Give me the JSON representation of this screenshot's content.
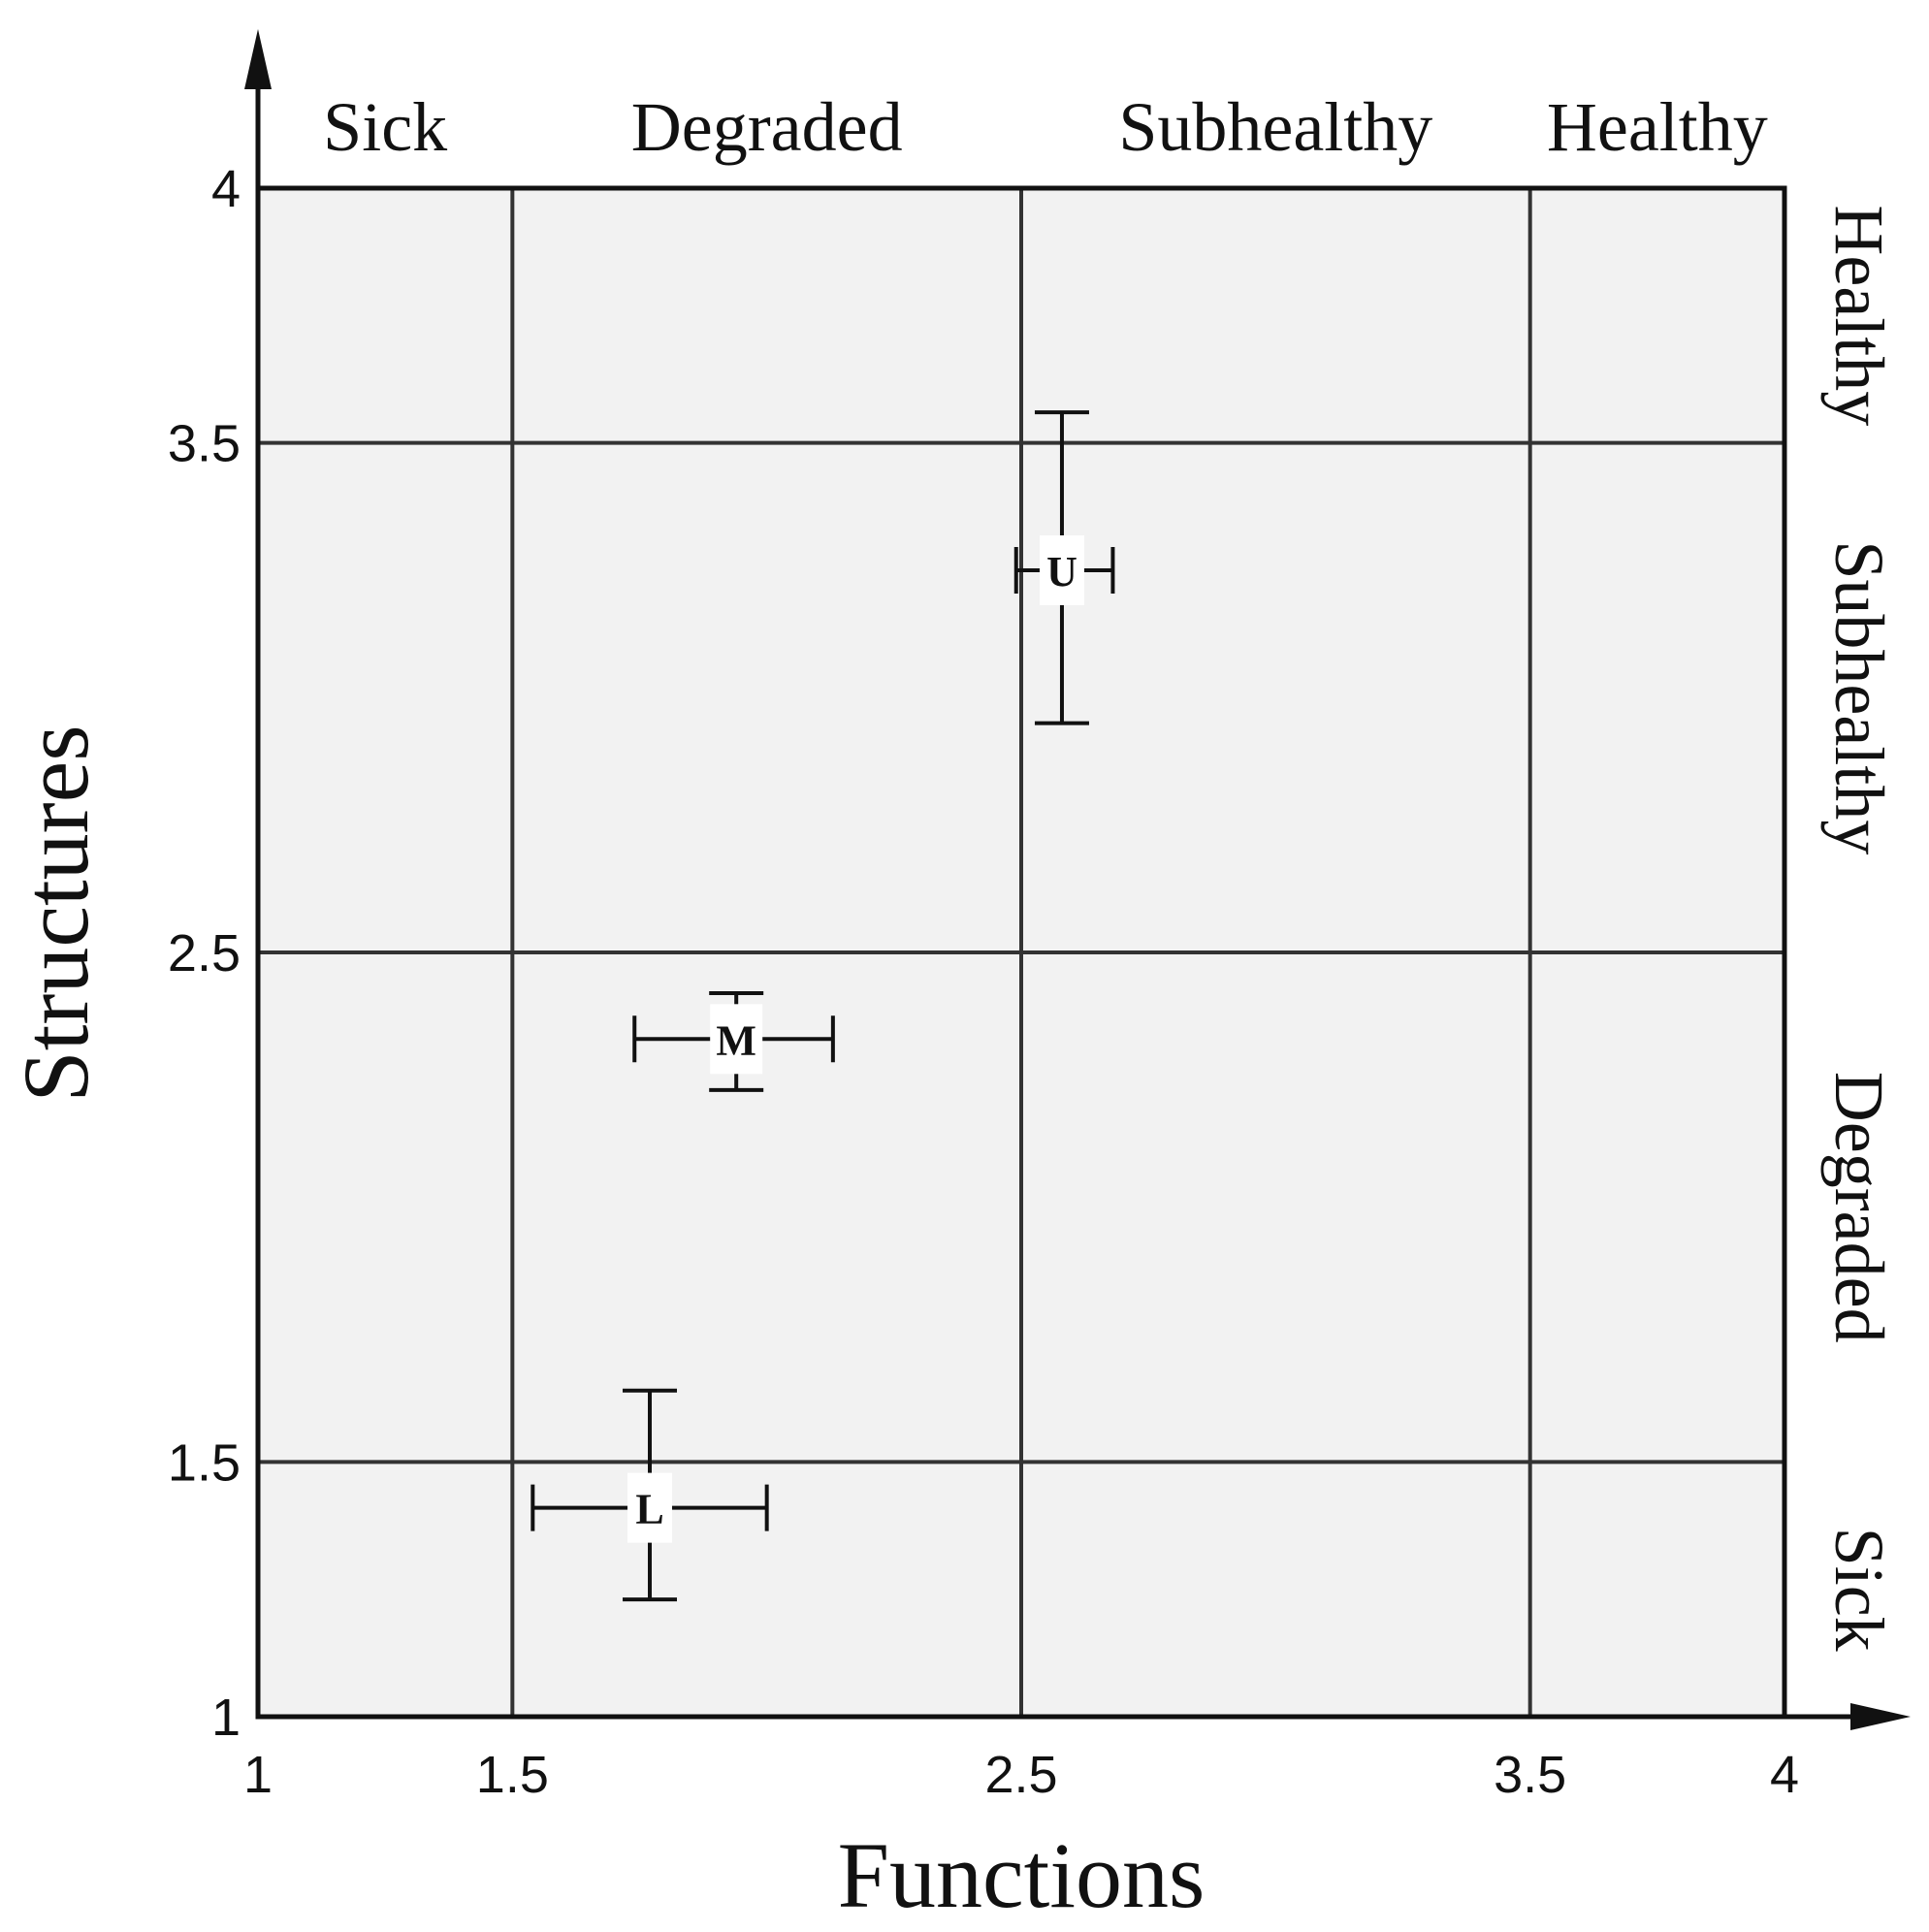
{
  "chart_data": {
    "type": "scatter",
    "title": "",
    "xlabel": "Functions",
    "ylabel": "Structures",
    "xlim": [
      1,
      4
    ],
    "ylim": [
      1,
      4
    ],
    "x_ticks": [
      1,
      1.5,
      2.5,
      3.5,
      4
    ],
    "x_tick_labels": [
      "1",
      "1.5",
      "2.5",
      "3.5",
      "4"
    ],
    "y_ticks": [
      1,
      1.5,
      2.5,
      3.5,
      4
    ],
    "y_tick_labels": [
      "1",
      "1.5",
      "2.5",
      "3.5",
      "4"
    ],
    "grid_x": [
      1.5,
      2.5,
      3.5
    ],
    "grid_y": [
      1.5,
      2.5,
      3.5
    ],
    "x_zones": [
      {
        "label": "Sick",
        "from": 1,
        "to": 1.5
      },
      {
        "label": "Degraded",
        "from": 1.5,
        "to": 2.5
      },
      {
        "label": "Subhealthy",
        "from": 2.5,
        "to": 3.5
      },
      {
        "label": "Healthy",
        "from": 3.5,
        "to": 4
      }
    ],
    "y_zones": [
      {
        "label": "Sick",
        "from": 1,
        "to": 1.5
      },
      {
        "label": "Degraded",
        "from": 1.5,
        "to": 2.5
      },
      {
        "label": "Subhealthy",
        "from": 2.5,
        "to": 3.5
      },
      {
        "label": "Healthy",
        "from": 3.5,
        "to": 4
      }
    ],
    "points": [
      {
        "label": "U",
        "x": 2.58,
        "y": 3.25,
        "x_err": [
          2.49,
          2.68
        ],
        "y_err": [
          2.95,
          3.56
        ]
      },
      {
        "label": "M",
        "x": 1.94,
        "y": 2.33,
        "x_err": [
          1.74,
          2.13
        ],
        "y_err": [
          2.23,
          2.42
        ]
      },
      {
        "label": "L",
        "x": 1.77,
        "y": 1.41,
        "x_err": [
          1.54,
          2.0
        ],
        "y_err": [
          1.23,
          1.64
        ]
      }
    ],
    "colors": {
      "plot_background": "#f2f2f2",
      "line": "#111111",
      "grid": "#333333"
    }
  }
}
